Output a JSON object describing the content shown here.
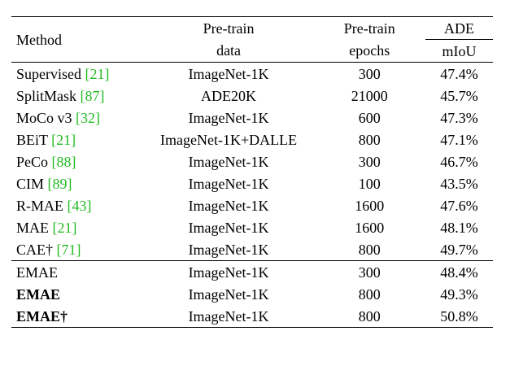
{
  "table": {
    "headers": {
      "method": "Method",
      "pretrain_data_line1": "Pre-train",
      "pretrain_data_line2": "data",
      "pretrain_epochs_line1": "Pre-train",
      "pretrain_epochs_line2": "epochs",
      "ade_group": "ADE",
      "miou": "mIoU"
    },
    "rows": [
      {
        "method": "Supervised",
        "cite": "[21]",
        "data": "ImageNet-1K",
        "epochs": "300",
        "miou": "47.4%",
        "bold_method": false,
        "bold_miou": false
      },
      {
        "method": "SplitMask",
        "cite": "[87]",
        "data": "ADE20K",
        "epochs": "21000",
        "miou": "45.7%",
        "bold_method": false,
        "bold_miou": false
      },
      {
        "method": "MoCo v3",
        "cite": "[32]",
        "data": "ImageNet-1K",
        "epochs": "600",
        "miou": "47.3%",
        "bold_method": false,
        "bold_miou": false
      },
      {
        "method": "BEiT",
        "cite": "[21]",
        "data": "ImageNet-1K+DALLE",
        "epochs": "800",
        "miou": "47.1%",
        "bold_method": false,
        "bold_miou": false
      },
      {
        "method": "PeCo",
        "cite": "[88]",
        "data": "ImageNet-1K",
        "epochs": "300",
        "miou": "46.7%",
        "bold_method": false,
        "bold_miou": false
      },
      {
        "method": "CIM",
        "cite": "[89]",
        "data": "ImageNet-1K",
        "epochs": "100",
        "miou": "43.5%",
        "bold_method": false,
        "bold_miou": false
      },
      {
        "method": "R-MAE",
        "cite": "[43]",
        "data": "ImageNet-1K",
        "epochs": "1600",
        "miou": "47.6%",
        "bold_method": false,
        "bold_miou": false
      },
      {
        "method": "MAE",
        "cite": "[21]",
        "data": "ImageNet-1K",
        "epochs": "1600",
        "miou": "48.1%",
        "bold_method": false,
        "bold_miou": false
      },
      {
        "method": "CAE†",
        "cite": "[71]",
        "data": "ImageNet-1K",
        "epochs": "800",
        "miou": "49.7%",
        "bold_method": false,
        "bold_miou": false
      },
      {
        "method": "EMAE",
        "cite": "",
        "data": "ImageNet-1K",
        "epochs": "300",
        "miou": "48.4%",
        "bold_method": false,
        "bold_miou": false
      },
      {
        "method": "EMAE",
        "cite": "",
        "data": "ImageNet-1K",
        "epochs": "800",
        "miou": "49.3%",
        "bold_method": true,
        "bold_miou": false
      },
      {
        "method": "EMAE†",
        "cite": "",
        "data": "ImageNet-1K",
        "epochs": "800",
        "miou": "50.8%",
        "bold_method": true,
        "bold_miou": true
      }
    ]
  }
}
